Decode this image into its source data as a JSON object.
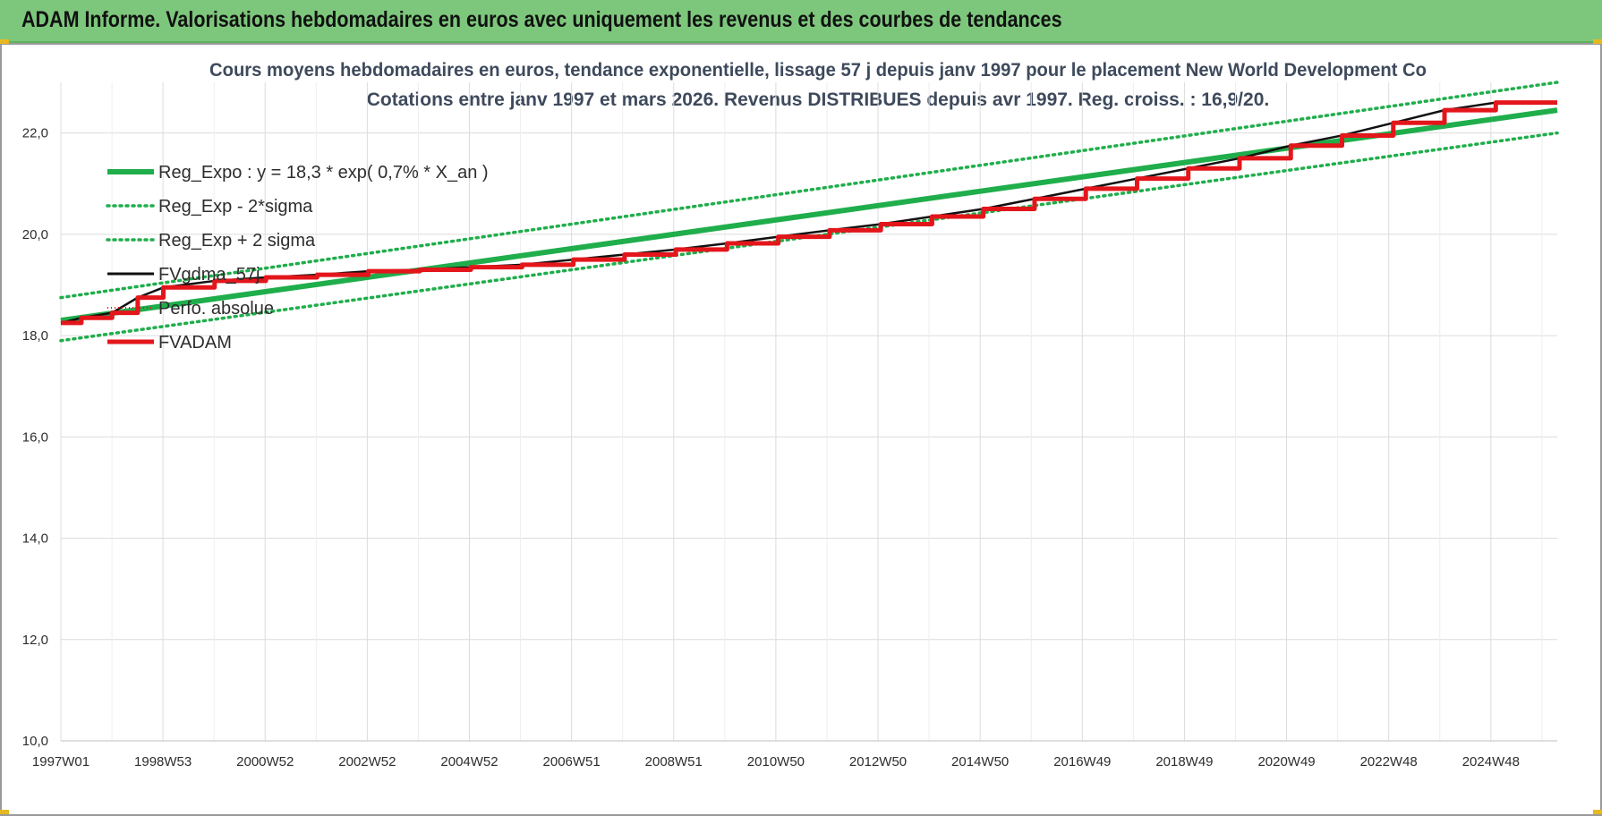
{
  "banner": {
    "title": "ADAM Informe. Valorisations hebdomadaires en euros avec uniquement les revenus et des courbes de tendances"
  },
  "colors": {
    "banner": "#7dc77c",
    "trend": "#1fae4b",
    "fvadam": "#e3161b",
    "fvgdma": "#111111",
    "grid": "#dcdcdc"
  },
  "chart_data": {
    "type": "line",
    "title": "Cours moyens hebdomadaires en euros, tendance exponentielle, lissage 57 j depuis janv 1997 pour le placement New World Development Co",
    "subtitle": "Cotations entre janv 1997 et mars 2026. Revenus DISTRIBUES depuis avr 1997. Reg. croiss. : 16,9/20.",
    "xlabel": "",
    "ylabel": "",
    "x_range": [
      "1997W01",
      "2026W13"
    ],
    "x_ticks": [
      "1997W01",
      "1998W53",
      "2000W52",
      "2002W52",
      "2004W52",
      "2006W51",
      "2008W51",
      "2010W50",
      "2012W50",
      "2014W50",
      "2016W49",
      "2018W49",
      "2020W49",
      "2022W48",
      "2024W48"
    ],
    "ylim": [
      10,
      23
    ],
    "y_ticks": [
      "10,0",
      "12,0",
      "14,0",
      "16,0",
      "18,0",
      "20,0",
      "22,0"
    ],
    "grid": true,
    "legend_position": "top-left",
    "series": [
      {
        "name": "Reg_Expo : y = 18,3 * exp( 0,7% *  X_an )",
        "style": "solid-thick",
        "color": "#1fae4b",
        "x": [
          1997.0,
          2026.2
        ],
        "y": [
          18.3,
          22.45
        ]
      },
      {
        "name": "Reg_Exp - 2*sigma",
        "style": "dotted",
        "color": "#1fae4b",
        "x": [
          1997.0,
          2026.2
        ],
        "y": [
          17.9,
          22.0
        ]
      },
      {
        "name": "Reg_Exp + 2 sigma",
        "style": "dotted",
        "color": "#1fae4b",
        "x": [
          1997.0,
          2026.2
        ],
        "y": [
          18.75,
          23.0
        ]
      },
      {
        "name": "FVgdma_57j",
        "style": "solid",
        "color": "#111111",
        "x": [
          1997.0,
          1997.4,
          1998.0,
          1998.5,
          1999.0,
          2000.0,
          2001.0,
          2002.0,
          2003.0,
          2004.0,
          2005.0,
          2006.0,
          2007.0,
          2008.0,
          2009.0,
          2010.0,
          2011.0,
          2012.0,
          2013.0,
          2014.0,
          2015.0,
          2016.0,
          2017.0,
          2018.0,
          2019.0,
          2020.0,
          2021.0,
          2022.0,
          2023.0,
          2024.0,
          2025.0,
          2026.2
        ],
        "y": [
          18.25,
          18.35,
          18.45,
          18.75,
          18.95,
          19.08,
          19.15,
          19.2,
          19.27,
          19.3,
          19.35,
          19.4,
          19.5,
          19.6,
          19.7,
          19.82,
          19.95,
          20.08,
          20.2,
          20.35,
          20.5,
          20.7,
          20.9,
          21.1,
          21.3,
          21.5,
          21.75,
          21.95,
          22.2,
          22.45,
          22.6,
          22.6
        ]
      },
      {
        "name": "Perfo. absolue",
        "style": "dotted-thin",
        "color": "#e3161b",
        "x": [],
        "y": []
      },
      {
        "name": "FVADAM",
        "style": "step-thick",
        "color": "#e3161b",
        "x": [
          1997.0,
          1997.4,
          1998.0,
          1998.5,
          1999.0,
          2000.0,
          2001.0,
          2002.0,
          2003.0,
          2004.0,
          2005.0,
          2006.0,
          2007.0,
          2008.0,
          2009.0,
          2010.0,
          2011.0,
          2012.0,
          2013.0,
          2014.0,
          2015.0,
          2016.0,
          2017.0,
          2018.0,
          2019.0,
          2020.0,
          2021.0,
          2022.0,
          2023.0,
          2024.0,
          2025.0,
          2026.2
        ],
        "y": [
          18.25,
          18.35,
          18.45,
          18.75,
          18.95,
          19.08,
          19.15,
          19.2,
          19.27,
          19.3,
          19.35,
          19.4,
          19.5,
          19.6,
          19.7,
          19.82,
          19.95,
          20.08,
          20.2,
          20.35,
          20.5,
          20.7,
          20.9,
          21.1,
          21.3,
          21.5,
          21.75,
          21.95,
          22.2,
          22.45,
          22.6,
          22.6
        ]
      }
    ]
  }
}
